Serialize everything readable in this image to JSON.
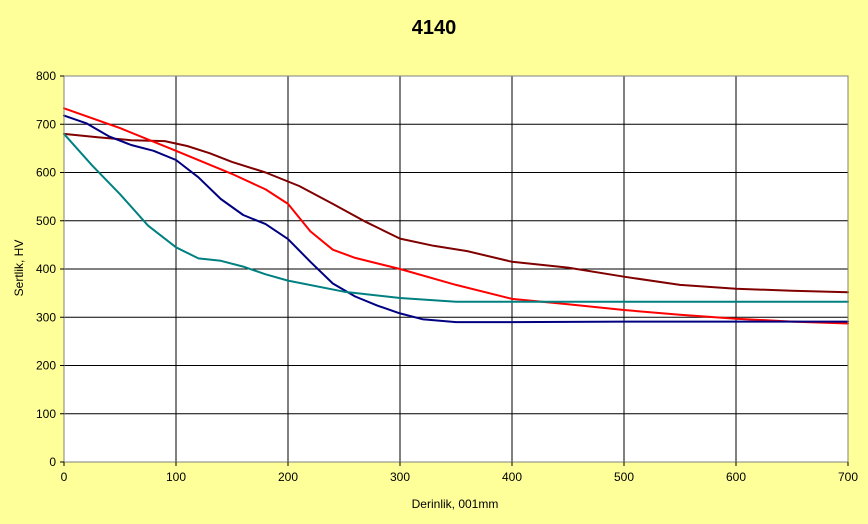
{
  "chart_data": {
    "type": "line",
    "title": "4140",
    "xlabel": "Derinlik, 001mm",
    "ylabel": "Sertlik, HV",
    "xlim": [
      0,
      700
    ],
    "ylim": [
      0,
      800
    ],
    "xticks": [
      0,
      100,
      200,
      300,
      400,
      500,
      600,
      700
    ],
    "yticks": [
      0,
      100,
      200,
      300,
      400,
      500,
      600,
      700,
      800
    ],
    "grid": true,
    "legend": "none",
    "plot_background": "#FFFFFF",
    "page_background": "#FFFF99",
    "series": [
      {
        "color": "#800000",
        "x": [
          0,
          30,
          60,
          90,
          110,
          130,
          150,
          180,
          210,
          240,
          270,
          300,
          330,
          360,
          400,
          450,
          500,
          550,
          600,
          650,
          700
        ],
        "y": [
          680,
          673,
          667,
          665,
          655,
          640,
          622,
          600,
          572,
          535,
          497,
          463,
          448,
          437,
          415,
          403,
          384,
          367,
          359,
          355,
          352
        ]
      },
      {
        "color": "#FF0000",
        "x": [
          0,
          50,
          100,
          150,
          180,
          200,
          220,
          240,
          260,
          300,
          350,
          400,
          450,
          500,
          550,
          600,
          650,
          700
        ],
        "y": [
          733,
          692,
          645,
          597,
          565,
          535,
          478,
          440,
          423,
          400,
          367,
          338,
          327,
          315,
          305,
          297,
          291,
          287
        ]
      },
      {
        "color": "#000080",
        "x": [
          0,
          20,
          40,
          60,
          80,
          100,
          120,
          140,
          160,
          180,
          200,
          220,
          240,
          260,
          280,
          300,
          320,
          350,
          400,
          500,
          600,
          700
        ],
        "y": [
          718,
          702,
          675,
          657,
          645,
          626,
          590,
          545,
          512,
          493,
          462,
          415,
          370,
          343,
          324,
          308,
          296,
          290,
          290,
          291,
          291,
          291
        ]
      },
      {
        "color": "#008080",
        "x": [
          0,
          25,
          50,
          75,
          100,
          120,
          140,
          160,
          180,
          200,
          250,
          300,
          350,
          400,
          500,
          600,
          700
        ],
        "y": [
          680,
          615,
          555,
          490,
          445,
          422,
          417,
          405,
          389,
          376,
          353,
          340,
          332,
          332,
          332,
          332,
          332
        ]
      }
    ]
  }
}
